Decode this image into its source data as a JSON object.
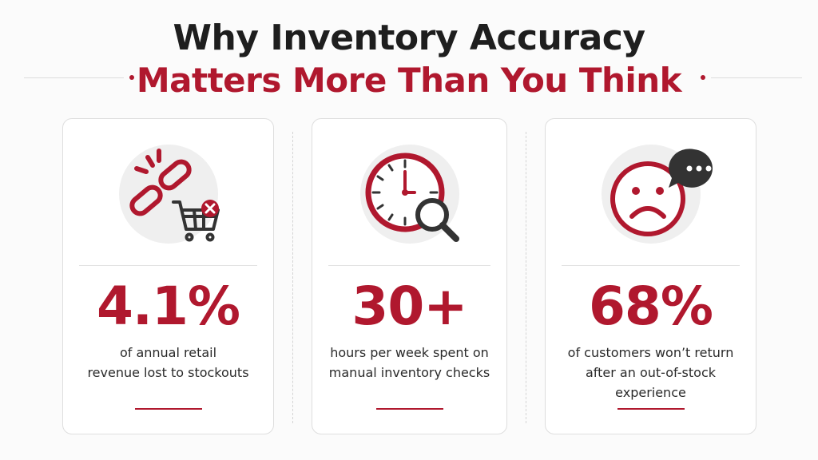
{
  "title": {
    "line1": "Why Inventory Accuracy",
    "line2": "Matters More Than You Think"
  },
  "cards": [
    {
      "stat": "4.1%",
      "description": [
        "of annual retail",
        "revenue lost to stockouts"
      ]
    },
    {
      "stat": "30+",
      "description": [
        "hours per week spent on",
        "manual inventory checks"
      ]
    },
    {
      "stat": "68%",
      "description": [
        "of customers won’t return",
        "after an out-of-stock",
        "experience"
      ]
    }
  ]
}
